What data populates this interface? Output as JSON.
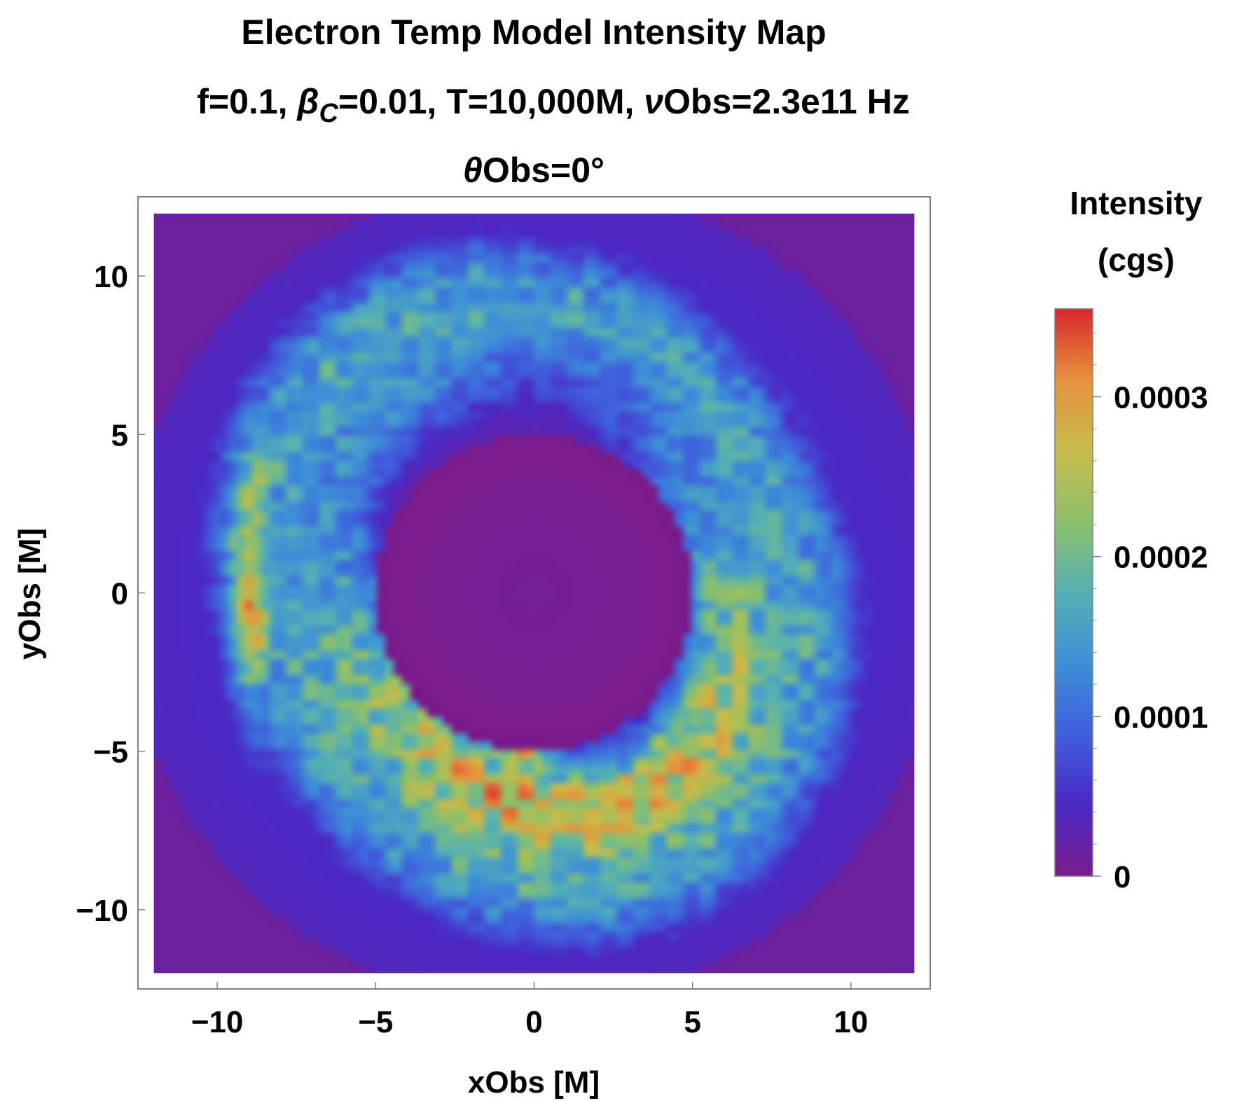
{
  "chart_data": {
    "type": "heatmap",
    "title_lines": [
      "Electron Temp Model Intensity Map",
      "f=0.1, βC=0.01, T=10,000M, νObs=2.3e11 Hz",
      "θObs=0°"
    ],
    "title_parts": {
      "line2": [
        {
          "text": "f=0.1, "
        },
        {
          "text": "β",
          "italic": true
        },
        {
          "text": "C",
          "italic": true,
          "sub": true
        },
        {
          "text": "=0.01, T=10,000M, "
        },
        {
          "text": "ν",
          "italic": true
        },
        {
          "text": "Obs=2.3e11 Hz"
        }
      ],
      "line3": [
        {
          "text": "θ",
          "italic": true
        },
        {
          "text": "Obs=0°"
        }
      ]
    },
    "xlabel": "xObs [M]",
    "ylabel": "yObs [M]",
    "xlim": [
      -12.5,
      12.5
    ],
    "ylim": [
      -12.5,
      12.5
    ],
    "data_extent": [
      -12,
      12
    ],
    "xticks": [
      -10,
      -5,
      0,
      5,
      10
    ],
    "yticks": [
      10,
      5,
      0,
      -5,
      -10
    ],
    "tick_labels": [
      "−10",
      "−5",
      "0",
      "5",
      "10"
    ],
    "colorbar": {
      "title_lines": [
        "Intensity",
        "(cgs)"
      ],
      "min": 0,
      "max": 0.000355,
      "ticks": [
        0,
        0.0001,
        0.0002,
        0.0003
      ],
      "tick_labels": [
        "0",
        "0.0001",
        "0.0002",
        "0.0003"
      ]
    },
    "colormap": [
      "#7a1c8c",
      "#4b28c4",
      "#3f5fdc",
      "#3d8fd8",
      "#54b0b4",
      "#8cc06a",
      "#c7bc4a",
      "#e6923c",
      "#d8262a"
    ],
    "ring_features": {
      "inner_hole_radius": 5.0,
      "ring_peak_radius": 6.2,
      "ring_outer_radius": 10.0,
      "peak_location": [
        -0.3,
        -5.0
      ],
      "peak_value": 0.000355,
      "bright_arc": "lower half of inner ring edge",
      "left_streak_x": -9
    }
  }
}
